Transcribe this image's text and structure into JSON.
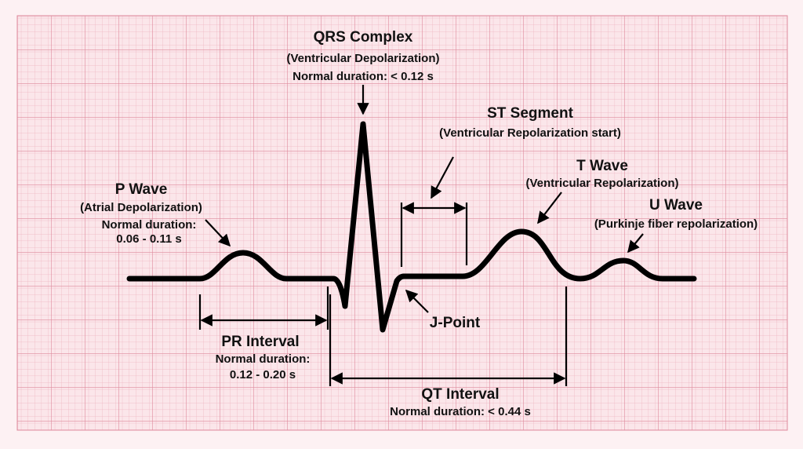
{
  "labels": [
    {
      "title": "QRS Complex",
      "lines": [
        "(Ventricular Depolarization)",
        "Normal duration: < 0.12 s"
      ]
    },
    {
      "title": "ST Segment",
      "lines": [
        "(Ventricular Repolarization start)"
      ]
    },
    {
      "title": "T Wave",
      "lines": [
        "(Ventricular Repolarization)"
      ]
    },
    {
      "title": "P Wave",
      "lines": [
        "(Atrial Depolarization)",
        "Normal duration:",
        "0.06 - 0.11 s"
      ]
    },
    {
      "title": "U Wave",
      "lines": [
        "(Purkinje fiber repolarization)"
      ]
    },
    {
      "title": "J-Point"
    },
    {
      "title": "PR Interval",
      "lines": [
        "Normal duration:",
        "0.12 - 0.20 s"
      ]
    },
    {
      "title": "QT Interval",
      "lines": [
        "Normal duration: < 0.44 s"
      ]
    }
  ]
}
